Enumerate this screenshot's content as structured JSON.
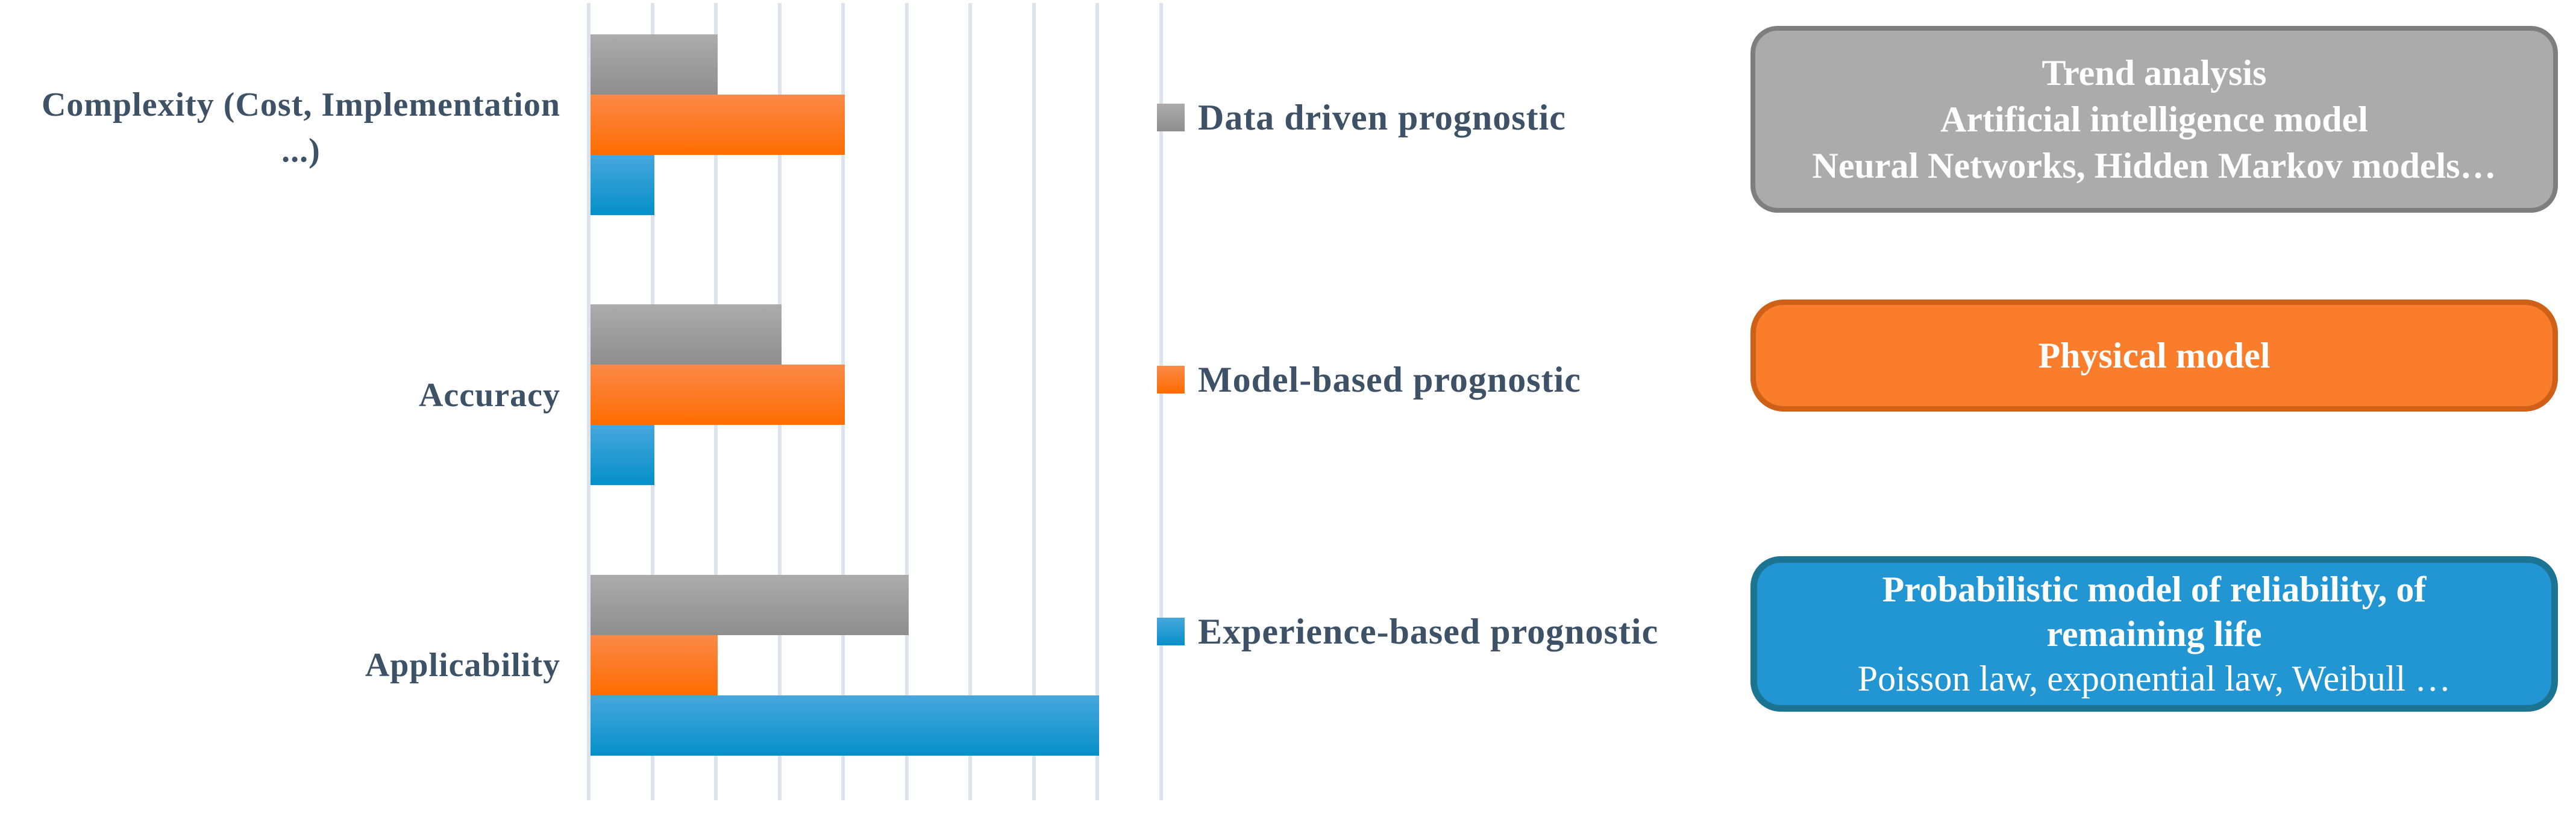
{
  "palette": {
    "text_color": "#3D5266",
    "gridline_color": "#DCE3EB",
    "background": "#FFFFFF"
  },
  "chart_data": {
    "type": "bar",
    "orientation": "horizontal",
    "title": "",
    "xlabel": "",
    "ylabel": "",
    "categories": [
      "Complexity (Cost, Implementation\n...)",
      "Accuracy",
      "Applicability"
    ],
    "series": [
      {
        "name": "Data driven prognostic",
        "values": [
          2,
          3,
          5
        ],
        "color_top": "#ACACAC",
        "color_bottom": "#8E8E8E"
      },
      {
        "name": "Model-based prognostic",
        "values": [
          4,
          4,
          2
        ],
        "color_top": "#FA8A48",
        "color_bottom": "#FE6C00"
      },
      {
        "name": "Experience-based prognostic",
        "values": [
          1,
          1,
          8
        ],
        "color_top": "#47A7DD",
        "color_bottom": "#0590C8"
      }
    ],
    "xlim": [
      0,
      9
    ],
    "gridline_count": 10,
    "grid": "vertical-only",
    "value_axis_labels_visible": false,
    "legend_position": "right-of-plot"
  },
  "annotations": {
    "data_driven": {
      "lines": [
        "Trend analysis",
        "Artificial intelligence model",
        "Neural Networks, Hidden Markov models…"
      ],
      "fill": "#ABABAB",
      "border": "#7E7E7E",
      "text_color": "#FFFFFF"
    },
    "model_based": {
      "lines": [
        "Physical model"
      ],
      "fill": "#F97D2A",
      "border": "#CE6018",
      "text_color": "#FFFFFF"
    },
    "experience_based": {
      "lines_bold": [
        "Probabilistic model of reliability, of",
        "remaining life"
      ],
      "line_light": "Poisson law, exponential law, Weibull …",
      "fill": "#2296D3",
      "border": "#1A7492",
      "text_color": "#FFFFFF"
    }
  }
}
